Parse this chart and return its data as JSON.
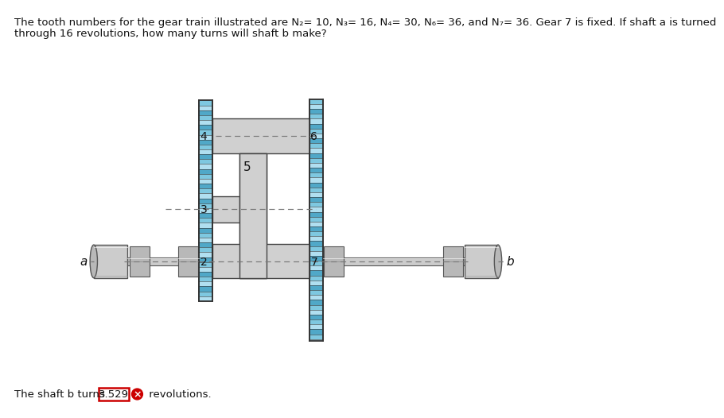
{
  "title_line1": "The tooth numbers for the gear train illustrated are N₂= 10, N₃= 16, N₄= 30, N₆= 36, and N₇= 36. Gear 7 is fixed. If shaft a is turned",
  "title_line2": "through 16 revolutions, how many turns will shaft b make?",
  "answer_text": "The shaft b turns",
  "answer_value": "3.529",
  "answer_suffix": "revolutions.",
  "bg_color": "#ffffff",
  "gear_blue_light": "#b8dff0",
  "gear_blue_mid": "#7bbfd8",
  "gear_blue_dark": "#4a9ab8",
  "gear_stripe1": "#88cce8",
  "gear_stripe2": "#c8eaf8",
  "shaft_gray": "#c8c8c8",
  "shaft_gray_dark": "#a0a0a0",
  "body_gray": "#d4d4d4",
  "body_outline": "#555555",
  "dash_color": "#777777",
  "text_color": "#111111",
  "answer_box_color": "#cc0000",
  "icon_color": "#cc0000"
}
